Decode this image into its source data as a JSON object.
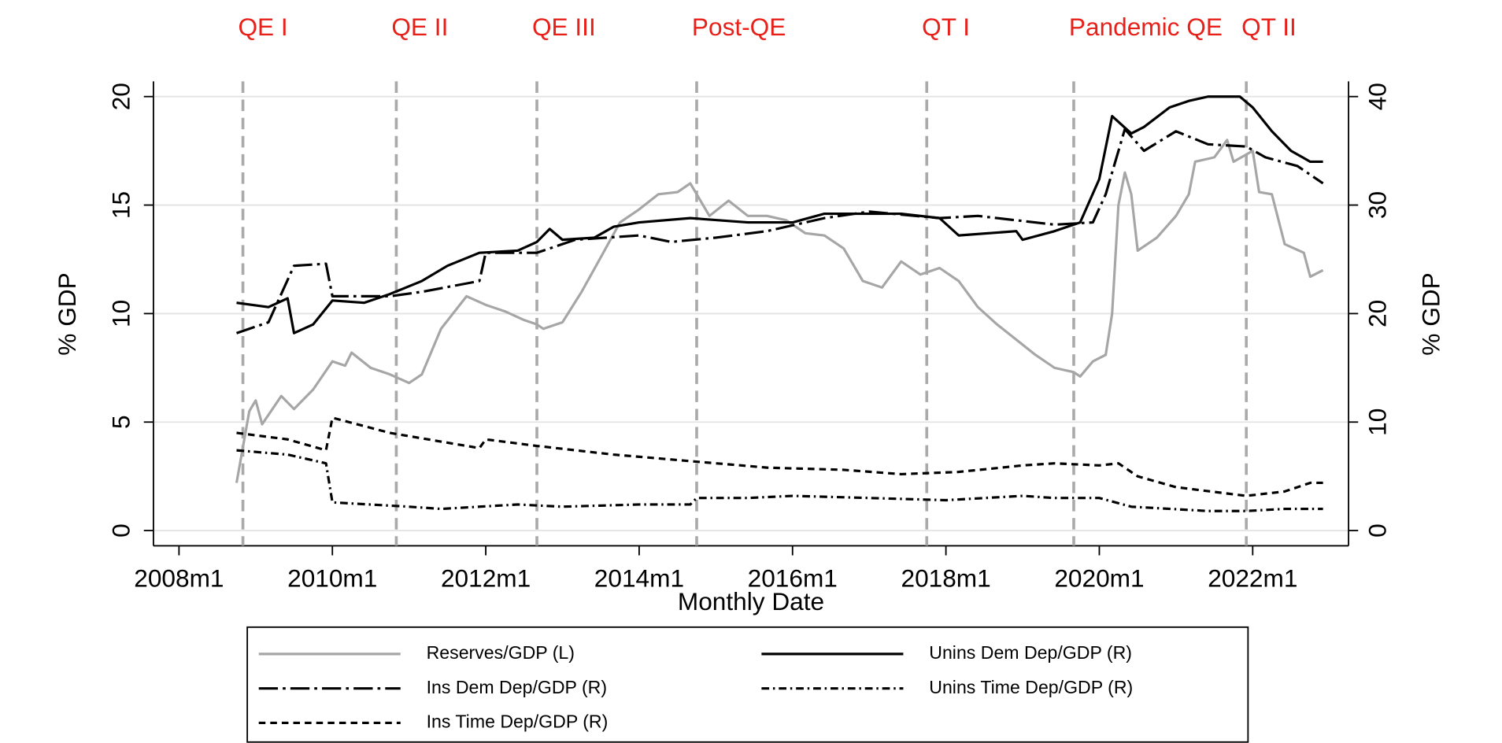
{
  "chart_data": {
    "type": "line",
    "x_label": "Monthly Date",
    "y_label": "% GDP",
    "y2_label": "% GDP",
    "xlim": [
      "2007m9",
      "2023m4"
    ],
    "xticks": [
      "2008m1",
      "2010m1",
      "2012m1",
      "2014m1",
      "2016m1",
      "2018m1",
      "2020m1",
      "2022m1"
    ],
    "ylim": [
      -0.7,
      20.7
    ],
    "yticks": [
      0,
      5,
      10,
      15,
      20
    ],
    "y2lim": [
      -1.4,
      41.4
    ],
    "y2ticks": [
      0,
      10,
      20,
      30,
      40
    ],
    "grid": true,
    "legend": "bottom",
    "event_color": "#e8201a",
    "events": [
      {
        "x": "2008m11",
        "label": "QE I"
      },
      {
        "x": "2010m11",
        "label": "QE II"
      },
      {
        "x": "2012m9",
        "label": "QE III"
      },
      {
        "x": "2014m10",
        "label": "Post-QE"
      },
      {
        "x": "2017m10",
        "label": "QT I"
      },
      {
        "x": "2019m9",
        "label": "Pandemic QE"
      },
      {
        "x": "2021m12",
        "label": "QT II"
      }
    ],
    "series": [
      {
        "name": "Reserves/GDP (L)",
        "color": "#a6a6a6",
        "style": "solid",
        "axis": "y",
        "x": [
          "2008m10",
          "2008m12",
          "2009m1",
          "2009m2",
          "2009m5",
          "2009m7",
          "2009m10",
          "2010m1",
          "2010m3",
          "2010m4",
          "2010m7",
          "2010m10",
          "2011m1",
          "2011m3",
          "2011m6",
          "2011m10",
          "2012m1",
          "2012m4",
          "2012m7",
          "2012m9",
          "2012m10",
          "2013m1",
          "2013m4",
          "2013m7",
          "2013m10",
          "2014m1",
          "2014m4",
          "2014m7",
          "2014m9",
          "2014m12",
          "2015m3",
          "2015m6",
          "2015m9",
          "2015m12",
          "2016m3",
          "2016m6",
          "2016m9",
          "2016m12",
          "2017m3",
          "2017m6",
          "2017m9",
          "2017m12",
          "2018m3",
          "2018m6",
          "2018m9",
          "2018m12",
          "2019m3",
          "2019m6",
          "2019m9",
          "2019m10",
          "2019m12",
          "2020m2",
          "2020m3",
          "2020m4",
          "2020m5",
          "2020m6",
          "2020m7",
          "2020m10",
          "2021m1",
          "2021m3",
          "2021m4",
          "2021m7",
          "2021m9",
          "2021m10",
          "2022m1",
          "2022m2",
          "2022m4",
          "2022m6",
          "2022m9",
          "2022m10",
          "2022m12"
        ],
        "values": [
          2.2,
          5.5,
          6.0,
          4.9,
          6.2,
          5.6,
          6.5,
          7.8,
          7.6,
          8.2,
          7.5,
          7.2,
          6.8,
          7.2,
          9.3,
          10.8,
          10.4,
          10.1,
          9.7,
          9.5,
          9.3,
          9.6,
          11.0,
          12.6,
          14.2,
          14.8,
          15.5,
          15.6,
          16.0,
          14.5,
          15.2,
          14.5,
          14.5,
          14.3,
          13.7,
          13.6,
          13.0,
          11.5,
          11.2,
          12.4,
          11.8,
          12.1,
          11.5,
          10.3,
          9.5,
          8.8,
          8.1,
          7.5,
          7.3,
          7.1,
          7.8,
          8.1,
          10.0,
          15.0,
          16.5,
          15.5,
          12.9,
          13.5,
          14.5,
          15.5,
          17.0,
          17.2,
          18.0,
          17.0,
          17.5,
          15.6,
          15.5,
          13.2,
          12.8,
          11.7,
          12.0
        ]
      },
      {
        "name": "Unins Dem Dep/GDP (R)",
        "color": "#000000",
        "style": "solid",
        "axis": "y2",
        "x": [
          "2008m10",
          "2009m3",
          "2009m6",
          "2009m7",
          "2009m10",
          "2010m1",
          "2010m6",
          "2010m10",
          "2011m3",
          "2011m7",
          "2011m12",
          "2012m6",
          "2012m9",
          "2012m11",
          "2013m1",
          "2013m6",
          "2013m9",
          "2014m1",
          "2014m9",
          "2015m6",
          "2016m1",
          "2016m6",
          "2017m6",
          "2017m12",
          "2018m3",
          "2018m12",
          "2019m1",
          "2019m6",
          "2019m10",
          "2020m1",
          "2020m3",
          "2020m6",
          "2020m8",
          "2020m12",
          "2021m3",
          "2021m6",
          "2021m11",
          "2022m1",
          "2022m4",
          "2022m7",
          "2022m10",
          "2022m12"
        ],
        "values": [
          21,
          20.6,
          21.4,
          18.2,
          19,
          21.2,
          21,
          21.8,
          23,
          24.4,
          25.6,
          25.8,
          26.6,
          27.8,
          26.8,
          27,
          28,
          28.4,
          28.8,
          28.4,
          28.4,
          29.2,
          29.2,
          28.8,
          27.2,
          27.6,
          26.8,
          27.6,
          28.4,
          32.4,
          38.2,
          36.6,
          37.2,
          39,
          39.6,
          40,
          40,
          39,
          36.8,
          35,
          34,
          34
        ]
      },
      {
        "name": "Ins Dem Dep/GDP (R)",
        "color": "#000000",
        "style": "longdashdot",
        "axis": "y2",
        "x": [
          "2008m10",
          "2009m3",
          "2009m7",
          "2009m12",
          "2010m1",
          "2010m10",
          "2011m3",
          "2011m12",
          "2012m1",
          "2012m9",
          "2013m3",
          "2014m1",
          "2014m6",
          "2015m1",
          "2015m9",
          "2016m6",
          "2017m1",
          "2017m12",
          "2018m6",
          "2019m6",
          "2019m12",
          "2020m2",
          "2020m5",
          "2020m8",
          "2021m1",
          "2021m6",
          "2021m12",
          "2022m3",
          "2022m8",
          "2022m12"
        ],
        "values": [
          18.2,
          19.2,
          24.4,
          24.6,
          21.6,
          21.6,
          22,
          23,
          25.6,
          25.6,
          26.8,
          27.2,
          26.6,
          27,
          27.6,
          28.8,
          29.4,
          28.8,
          29,
          28.2,
          28.4,
          31,
          37,
          35,
          36.8,
          35.6,
          35.4,
          34.4,
          33.6,
          32
        ]
      },
      {
        "name": "Unins Time Dep/GDP (R)",
        "color": "#000000",
        "style": "dashdot",
        "axis": "y2",
        "x": [
          "2008m10",
          "2009m6",
          "2009m12",
          "2010m1",
          "2011m1",
          "2011m6",
          "2012m6",
          "2013m1",
          "2014m1",
          "2014m9",
          "2014m10",
          "2015m6",
          "2016m1",
          "2017m1",
          "2018m1",
          "2019m1",
          "2019m6",
          "2020m1",
          "2020m6",
          "2021m6",
          "2021m12",
          "2022m6",
          "2022m12"
        ],
        "values": [
          7.4,
          7,
          6.2,
          2.6,
          2.2,
          2,
          2.4,
          2.2,
          2.4,
          2.4,
          3,
          3,
          3.2,
          3,
          2.8,
          3.2,
          3,
          3,
          2.2,
          1.8,
          1.8,
          2,
          2
        ]
      },
      {
        "name": "Ins Time Dep/GDP (R)",
        "color": "#000000",
        "style": "dash",
        "axis": "y2",
        "x": [
          "2008m10",
          "2009m6",
          "2009m12",
          "2010m1",
          "2010m10",
          "2011m6",
          "2011m12",
          "2012m1",
          "2012m9",
          "2013m9",
          "2014m9",
          "2015m9",
          "2016m9",
          "2017m6",
          "2018m3",
          "2019m1",
          "2019m6",
          "2020m1",
          "2020m4",
          "2020m7",
          "2021m1",
          "2021m12",
          "2022m6",
          "2022m10",
          "2022m12"
        ],
        "values": [
          9,
          8.4,
          7.4,
          10.4,
          9,
          8.2,
          7.6,
          8.4,
          7.8,
          7,
          6.4,
          5.8,
          5.6,
          5.2,
          5.4,
          6,
          6.2,
          6,
          6.2,
          5,
          4,
          3.2,
          3.6,
          4.4,
          4.4
        ]
      }
    ]
  }
}
